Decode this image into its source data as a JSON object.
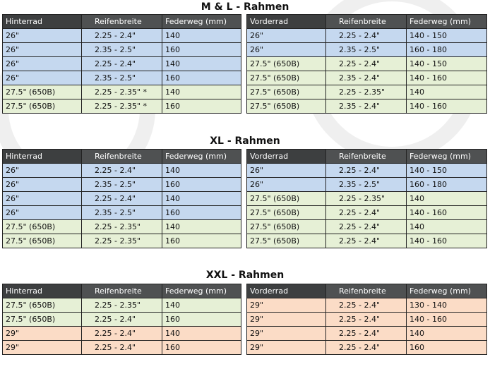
{
  "sections": [
    {
      "title": "M & L - Rahmen",
      "rear": {
        "headers": [
          "Hinterrad",
          "Reifenbreite",
          "Federweg (mm)"
        ],
        "rows": [
          {
            "tone": "blue",
            "cells": [
              "26\"",
              "2.25 - 2.4\"",
              "140"
            ]
          },
          {
            "tone": "blue",
            "cells": [
              "26\"",
              "2.35 - 2.5\"",
              "160"
            ]
          },
          {
            "tone": "blue",
            "cells": [
              "26\"",
              "2.25 - 2.4\"",
              "140"
            ]
          },
          {
            "tone": "blue",
            "cells": [
              "26\"",
              "2.35 - 2.5\"",
              "160"
            ]
          },
          {
            "tone": "green",
            "cells": [
              "27.5\" (650B)",
              "2.25 - 2.35\" *",
              "140"
            ]
          },
          {
            "tone": "green",
            "cells": [
              "27.5\" (650B)",
              "2.25 - 2.35\" *",
              "160"
            ]
          }
        ]
      },
      "front": {
        "headers": [
          "Vorderrad",
          "Reifenbreite",
          "Federweg (mm)"
        ],
        "rows": [
          {
            "tone": "blue",
            "cells": [
              "26\"",
              "2.25 - 2.4\"",
              "140 - 150"
            ]
          },
          {
            "tone": "blue",
            "cells": [
              "26\"",
              "2.35 - 2.5\"",
              "160 - 180"
            ]
          },
          {
            "tone": "green",
            "cells": [
              "27.5\" (650B)",
              "2.25 - 2.4\"",
              "140 - 150"
            ]
          },
          {
            "tone": "green",
            "cells": [
              "27.5\" (650B)",
              "2.35 - 2.4\"",
              "140 - 160"
            ]
          },
          {
            "tone": "green",
            "cells": [
              "27.5\" (650B)",
              "2.25 - 2.35\"",
              "140"
            ]
          },
          {
            "tone": "green",
            "cells": [
              "27.5\" (650B)",
              "2.35 - 2.4\"",
              "140 - 160"
            ]
          }
        ]
      }
    },
    {
      "title": "XL - Rahmen",
      "rear": {
        "headers": [
          "Hinterrad",
          "Reifenbreite",
          "Federweg (mm)"
        ],
        "rows": [
          {
            "tone": "blue",
            "cells": [
              "26\"",
              "2.25 - 2.4\"",
              "140"
            ]
          },
          {
            "tone": "blue",
            "cells": [
              "26\"",
              "2.35 - 2.5\"",
              "160"
            ]
          },
          {
            "tone": "blue",
            "cells": [
              "26\"",
              "2.25 - 2.4\"",
              "140"
            ]
          },
          {
            "tone": "blue",
            "cells": [
              "26\"",
              "2.35 - 2.5\"",
              "160"
            ]
          },
          {
            "tone": "green",
            "cells": [
              "27.5\" (650B)",
              "2.25 - 2.35\"",
              "140"
            ]
          },
          {
            "tone": "green",
            "cells": [
              "27.5\" (650B)",
              "2.25 - 2.35\"",
              "160"
            ]
          }
        ]
      },
      "front": {
        "headers": [
          "Vorderrad",
          "Reifenbreite",
          "Federweg (mm)"
        ],
        "rows": [
          {
            "tone": "blue",
            "cells": [
              "26\"",
              "2.25 - 2.4\"",
              "140 - 150"
            ]
          },
          {
            "tone": "blue",
            "cells": [
              "26\"",
              "2.35 - 2.5\"",
              "160 - 180"
            ]
          },
          {
            "tone": "green",
            "cells": [
              "27.5\" (650B)",
              "2.25 - 2.35\"",
              "140"
            ]
          },
          {
            "tone": "green",
            "cells": [
              "27.5\" (650B)",
              "2.25 - 2.4\"",
              "140 - 160"
            ]
          },
          {
            "tone": "green",
            "cells": [
              "27.5\" (650B)",
              "2.25 - 2.4\"",
              "140"
            ]
          },
          {
            "tone": "green",
            "cells": [
              "27.5\" (650B)",
              "2.25 - 2.4\"",
              "140 - 160"
            ]
          }
        ]
      }
    },
    {
      "title": "XXL - Rahmen",
      "rear": {
        "headers": [
          "Hinterrad",
          "Reifenbreite",
          "Federweg (mm)"
        ],
        "rows": [
          {
            "tone": "green",
            "cells": [
              "27.5\" (650B)",
              "2.25 - 2.35\"",
              "140"
            ]
          },
          {
            "tone": "green",
            "cells": [
              "27.5\" (650B)",
              "2.25 - 2.4\"",
              "160"
            ]
          },
          {
            "tone": "peach",
            "cells": [
              "29\"",
              "2.25 - 2.4\"",
              "140"
            ]
          },
          {
            "tone": "peach",
            "cells": [
              "29\"",
              "2.25 - 2.4\"",
              "160"
            ]
          }
        ]
      },
      "front": {
        "headers": [
          "Vorderrad",
          "Reifenbreite",
          "Federweg (mm)"
        ],
        "rows": [
          {
            "tone": "peach",
            "cells": [
              "29\"",
              "2.25 - 2.4\"",
              "130 - 140"
            ]
          },
          {
            "tone": "peach",
            "cells": [
              "29\"",
              "2.25 - 2.4\"",
              "140 - 160"
            ]
          },
          {
            "tone": "peach",
            "cells": [
              "29\"",
              "2.25 - 2.4\"",
              "140"
            ]
          },
          {
            "tone": "peach",
            "cells": [
              "29\"",
              "2.25 - 2.4\"",
              "160"
            ]
          }
        ]
      }
    }
  ],
  "colors": {
    "header": "#4f5152",
    "blue_row": "#c5d8ef",
    "green_row": "#e6f0d6",
    "peach_row": "#fbdcc6"
  }
}
